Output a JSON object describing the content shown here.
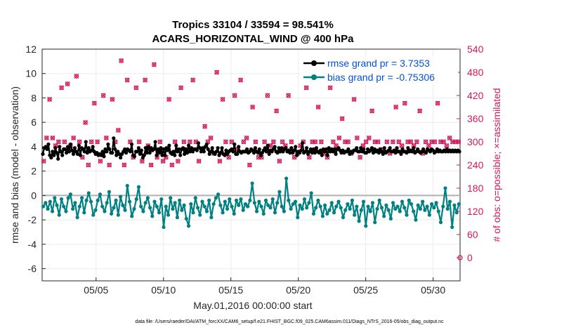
{
  "chart_data": {
    "type": "line",
    "title": "Tropics 33104 / 33594 = 98.541%",
    "subtitle": "ACARS_HORIZONTAL_WIND @ 400 hPa",
    "xlabel": "May.01,2016 00:00:00 start",
    "ylabel_left": "rmse and bias (model - observation)",
    "ylabel_right": "# of obs: o=possible; ×=assimilated",
    "footnote": "data file: /Users/raeder/DAI/ATM_forcXX/CAM6_setup/f.e21.FHIST_BGC.f09_025.CAM6assim.011/Diags_NTrS_2016-05/obs_diag_output.nc",
    "x_ticks": [
      "05/05",
      "05/10",
      "05/15",
      "05/20",
      "05/25",
      "05/30"
    ],
    "x_tick_days": [
      5,
      10,
      15,
      20,
      25,
      30
    ],
    "xlim_days": [
      1,
      32
    ],
    "ylim_left": [
      -7,
      12
    ],
    "y_ticks_left": [
      "12",
      "10",
      "8",
      "6",
      "4",
      "2",
      "0",
      "-2",
      "-4",
      "-6"
    ],
    "ylim_right": [
      -60,
      540
    ],
    "y_ticks_right": [
      "540",
      "480",
      "420",
      "360",
      "300",
      "240",
      "180",
      "120",
      "60",
      "0"
    ],
    "grid": true,
    "legend_position": "top-right",
    "colors": {
      "rmse": "#000000",
      "bias": "#008080",
      "obs_count": "#d6185a",
      "right_axis": "#d6185a",
      "zero_line": "#b0b0b0",
      "legend_text": "#0050e0"
    },
    "series": [
      {
        "name": "rmse grand pr = 3.7353",
        "axis": "left",
        "values": [
          3.4,
          3.9,
          4.0,
          3.8,
          4.2,
          3.3,
          3.1,
          3.6,
          3.3,
          3.9,
          3.5,
          3.0,
          4.0,
          3.6,
          3.3,
          3.8,
          3.8,
          3.5,
          4.0,
          3.6,
          4.2,
          3.7,
          3.4,
          3.9,
          3.6,
          3.4,
          4.1,
          3.3,
          3.9,
          3.8,
          3.6,
          4.4,
          3.5,
          3.9,
          3.6,
          3.7,
          4.0,
          3.6,
          3.4,
          3.5,
          3.3,
          3.4,
          3.3,
          3.6,
          3.2,
          3.8,
          3.6,
          4.2,
          3.8,
          3.5,
          3.5,
          4.7,
          3.8,
          3.3,
          3.6,
          3.4,
          3.1,
          3.4,
          3.6,
          3.8,
          3.5,
          3.8,
          3.7,
          3.6,
          4.2,
          3.3,
          3.2,
          3.6,
          3.6,
          3.9,
          3.4,
          3.7,
          3.1,
          3.3,
          3.9,
          3.5,
          4.0,
          3.5,
          3.9,
          3.7,
          3.8,
          4.4,
          3.3,
          3.8,
          3.5,
          3.9,
          3.3,
          3.8,
          3.3,
          3.9,
          3.7,
          4.1,
          3.5,
          3.4,
          3.6,
          3.3,
          4.1,
          3.6,
          3.8,
          3.3,
          3.8,
          3.9,
          3.4,
          3.8,
          3.5,
          4.1,
          3.6,
          3.9,
          3.6,
          3.8,
          3.8,
          3.7,
          4.3,
          3.9,
          3.6,
          3.9,
          3.6,
          4.0,
          4.2,
          3.8,
          3.4,
          3.6,
          3.9,
          3.5,
          3.4,
          3.6,
          3.9,
          3.3,
          3.5,
          3.9,
          3.4,
          3.3,
          3.7,
          3.4,
          3.6,
          3.7,
          3.8,
          3.6,
          4.2,
          3.4,
          3.4,
          4.0,
          3.6,
          3.5,
          3.6,
          3.6,
          3.6,
          3.8,
          3.5,
          3.6,
          3.8,
          3.7,
          3.5,
          3.9,
          3.6,
          3.5,
          3.8,
          3.3,
          3.5,
          3.7,
          3.9,
          3.6,
          4.1,
          3.4,
          3.7,
          3.6,
          3.8,
          4.0,
          3.6,
          3.5,
          3.9,
          3.6,
          3.9,
          3.6,
          3.8,
          3.9,
          3.6,
          3.7,
          3.5,
          3.9,
          3.5,
          3.7,
          4.0,
          3.3,
          3.6,
          3.5,
          3.7,
          4.3,
          3.5,
          3.6,
          3.9,
          3.4,
          3.6,
          3.8,
          3.5,
          3.8,
          3.5,
          3.9,
          3.6,
          3.5,
          3.7,
          3.3,
          3.8,
          3.6,
          3.8,
          3.3,
          3.9,
          3.6,
          3.8,
          3.6,
          3.8,
          3.4,
          3.8,
          3.9,
          3.7,
          3.5,
          3.7,
          3.5,
          3.6,
          3.6,
          3.8,
          3.4,
          3.6,
          3.5,
          3.7,
          3.7,
          3.9,
          3.6,
          3.6,
          3.9,
          3.6,
          3.8,
          3.5,
          3.5,
          3.8,
          3.6,
          3.7,
          3.9,
          3.5,
          3.8,
          3.6,
          3.7,
          3.5,
          3.8,
          3.6,
          3.4,
          3.9,
          3.5,
          3.6,
          3.7,
          3.9,
          3.6,
          3.6,
          3.7,
          3.5,
          3.9,
          3.6,
          3.6,
          3.4,
          3.8,
          3.6,
          3.6,
          3.5,
          3.9,
          3.6,
          3.7,
          3.6,
          3.9,
          3.5,
          3.6,
          3.8,
          3.6,
          3.5,
          3.6,
          3.8,
          3.6,
          3.5,
          3.8,
          3.7,
          3.6,
          3.8,
          3.7,
          3.5,
          3.6,
          3.8,
          3.6,
          3.7,
          3.6,
          3.6,
          3.7,
          3.6,
          3.8,
          3.6,
          3.7,
          3.6,
          3.7,
          3.6,
          3.7,
          3.6,
          3.7,
          3.6
        ]
      },
      {
        "name": "bias grand pr = -0.75306",
        "axis": "left",
        "values": [
          -0.9,
          -0.6,
          -1.1,
          -0.5,
          -1.3,
          -0.2,
          -0.8,
          -1.6,
          -0.3,
          -0.9,
          -1.3,
          -0.2,
          0.1,
          -1.1,
          -0.6,
          -1.8,
          -0.9,
          -0.2,
          -1.4,
          -0.4,
          0.2,
          -0.5,
          -1.6,
          -1.2,
          -0.4,
          0.1,
          -0.9,
          -1.3,
          -0.6,
          0.3,
          -1.5,
          -1.0,
          -0.4,
          -1.6,
          -0.1,
          -0.8,
          -1.2,
          0.8,
          -0.5,
          -1.7,
          -1.1,
          -0.3,
          0.7,
          -0.9,
          -1.3,
          -0.6,
          -0.2,
          -1.0,
          -1.7,
          -0.5,
          -0.9,
          -1.4,
          -0.3,
          -2.6,
          -0.9,
          -1.6,
          -0.2,
          -1.1,
          -0.6,
          -1.8,
          -0.4,
          -1.2,
          -0.8,
          -1.9,
          -2.5,
          -0.7,
          -1.4,
          -0.2,
          -1.0,
          -1.6,
          -0.5,
          -0.9,
          -1.3,
          -0.4,
          -1.8,
          -0.7,
          -0.2,
          0.1,
          -0.8,
          -1.4,
          -0.5,
          -1.1,
          -0.3,
          -0.9,
          -1.5,
          -0.4,
          -0.8,
          -0.3,
          -1.2,
          -0.7,
          -0.9,
          -0.4,
          1.0,
          -0.6,
          -1.3,
          -0.5,
          -0.9,
          -1.5,
          -0.4,
          -0.8,
          -1.0,
          -0.3,
          -1.4,
          -0.6,
          0.3,
          -0.9,
          -1.3,
          1.4,
          -0.4,
          -1.1,
          -0.7,
          -0.5,
          -1.8,
          -0.8,
          -1.1,
          -0.3,
          -1.0,
          -0.6,
          0.2,
          -1.5,
          -1.0,
          -0.4,
          -0.9,
          -1.7,
          -0.8,
          -1.5,
          -1.2,
          -0.6,
          -1.4,
          -0.9,
          -0.5,
          -1.0,
          -1.8,
          -1.2,
          -0.7,
          -1.1,
          -0.4,
          -1.6,
          -0.9,
          -2.1,
          -1.2,
          -0.5,
          -2.5,
          -0.9,
          -1.3,
          -0.6,
          -2.2,
          -1.1,
          -0.4,
          -1.0,
          -1.7,
          -0.8,
          -1.2,
          -1.9,
          -0.6,
          -1.1,
          -0.9,
          -1.3,
          -0.5,
          -1.0,
          -1.6,
          -0.4,
          -0.7,
          -1.3,
          -2.0,
          -0.8,
          -1.1,
          -0.5,
          -1.2,
          -0.9,
          -1.6,
          -0.7,
          -1.0,
          -0.6,
          -1.3,
          -2.2,
          -0.9,
          0.6,
          -1.1,
          -0.5,
          -2.6,
          -0.8,
          -1.4,
          -0.7
        ]
      },
      {
        "name": "# of obs (possible / assimilated)",
        "axis": "right",
        "values": [
          250,
          310,
          410,
          310,
          290,
          300,
          440,
          300,
          450,
          290,
          310,
          470,
          300,
          260,
          350,
          240,
          300,
          400,
          300,
          250,
          420,
          310,
          240,
          410,
          300,
          330,
          510,
          240,
          460,
          300,
          260,
          440,
          300,
          250,
          460,
          290,
          240,
          500,
          260,
          300,
          250,
          260,
          410,
          240,
          300,
          250,
          440,
          300,
          280,
          300,
          460,
          300,
          250,
          280,
          340,
          300,
          310,
          270,
          480,
          250,
          410,
          300,
          260,
          300,
          420,
          280,
          460,
          300,
          310,
          240,
          390,
          300,
          260,
          260,
          300,
          420,
          290,
          300,
          380,
          250,
          300,
          290,
          420,
          300,
          260,
          270,
          290,
          300,
          440,
          260,
          300,
          300,
          390,
          300,
          270,
          260,
          440,
          300,
          290,
          310,
          360,
          300,
          300,
          270,
          410,
          310,
          260,
          290,
          300,
          310,
          380,
          300,
          300,
          280,
          480,
          300,
          270,
          300,
          390,
          300,
          290,
          400,
          300,
          300,
          290,
          300,
          380,
          270,
          300,
          290,
          300,
          300,
          400,
          300,
          300,
          290,
          310,
          300,
          300,
          300
        ]
      }
    ]
  }
}
